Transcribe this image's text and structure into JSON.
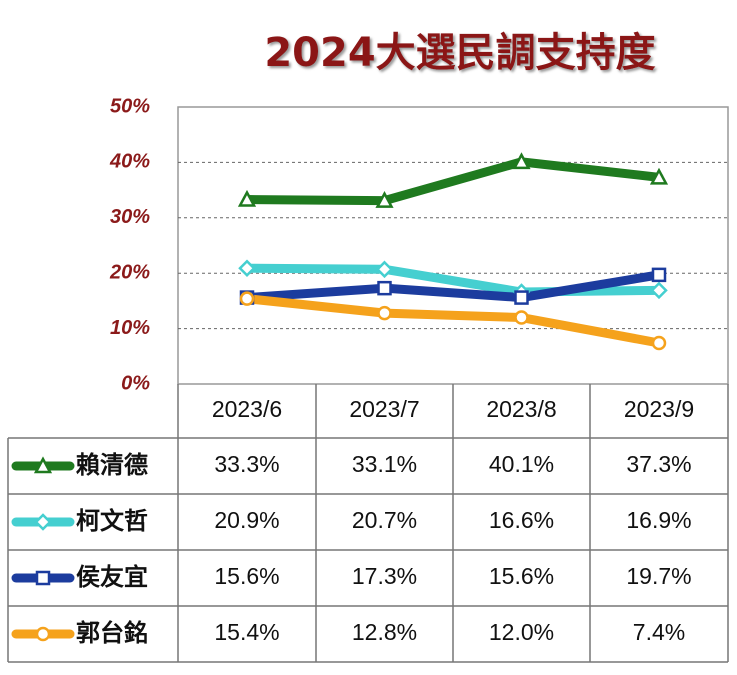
{
  "chart_data": {
    "type": "line",
    "title": "2024大選民調支持度",
    "categories": [
      "2023/6",
      "2023/7",
      "2023/8",
      "2023/9"
    ],
    "ylim": [
      0,
      50
    ],
    "yticks": [
      {
        "value": 0,
        "label": "0%"
      },
      {
        "value": 10,
        "label": "10%"
      },
      {
        "value": 20,
        "label": "20%"
      },
      {
        "value": 30,
        "label": "30%"
      },
      {
        "value": 40,
        "label": "40%"
      },
      {
        "value": 50,
        "label": "50%"
      }
    ],
    "grid": true,
    "series": [
      {
        "name": "賴清德",
        "color": "#1f7a1f",
        "marker": "triangle",
        "values": [
          33.3,
          33.1,
          40.1,
          37.3
        ],
        "value_labels": [
          "33.3%",
          "33.1%",
          "40.1%",
          "37.3%"
        ]
      },
      {
        "name": "柯文哲",
        "color": "#45cfd0",
        "marker": "diamond",
        "values": [
          20.9,
          20.7,
          16.6,
          16.9
        ],
        "value_labels": [
          "20.9%",
          "20.7%",
          "16.6%",
          "16.9%"
        ]
      },
      {
        "name": "侯友宜",
        "color": "#1c3c9e",
        "marker": "square",
        "values": [
          15.6,
          17.3,
          15.6,
          19.7
        ],
        "value_labels": [
          "15.6%",
          "17.3%",
          "15.6%",
          "19.7%"
        ]
      },
      {
        "name": "郭台銘",
        "color": "#f5a21c",
        "marker": "circle",
        "values": [
          15.4,
          12.8,
          12.0,
          7.4
        ],
        "value_labels": [
          "15.4%",
          "12.8%",
          "12.0%",
          "7.4%"
        ]
      }
    ]
  }
}
